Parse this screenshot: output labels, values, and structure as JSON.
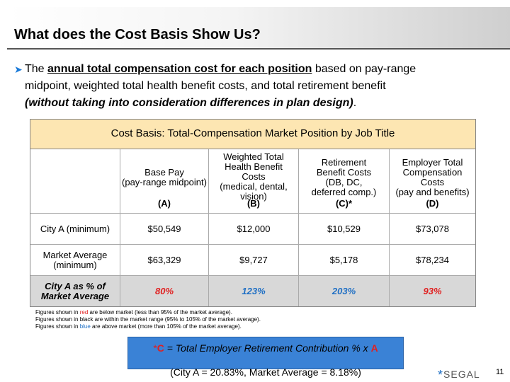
{
  "slide": {
    "title": "What does the Cost Basis Show Us?",
    "bullet": {
      "prefix": "The ",
      "underlined": "annual total compensation cost for each position",
      "rest1": " based on pay-range",
      "line2": "midpoint, weighted total health benefit costs, and total retirement benefit",
      "italic": "(without taking into consideration differences in plan design)",
      "end": "."
    },
    "page_number": "11",
    "logo_text": "SEGAL",
    "logo_mark": "*"
  },
  "table": {
    "caption": "Cost Basis: Total-Compensation Market Position by Job Title",
    "columns": [
      {
        "bold": "Base Pay",
        "sub": "(pay-range midpoint)",
        "letter": "(A)"
      },
      {
        "bold": "Weighted Total Health Benefit Costs",
        "sub": "(medical, dental, vision)",
        "letter": "(B)"
      },
      {
        "bold": "Retirement Benefit Costs",
        "sub": "(DB, DC, deferred comp.)",
        "letter": "(C)*"
      },
      {
        "bold": "Employer Total Compensation Costs",
        "sub": "(pay and benefits)",
        "letter": "(D)"
      }
    ],
    "rows": [
      {
        "label": "City A (minimum)",
        "values": [
          "$50,549",
          "$12,000",
          "$10,529",
          "$73,078"
        ]
      },
      {
        "label": "Market Average (minimum)",
        "values": [
          "$63,329",
          "$9,727",
          "$5,178",
          "$78,234"
        ]
      },
      {
        "label": "City A as % of Market Average",
        "values": [
          "80%",
          "123%",
          "203%",
          "93%"
        ],
        "colors": [
          "red",
          "blue",
          "blue",
          "red"
        ]
      }
    ]
  },
  "notes": {
    "line1_pre": "Figures shown in ",
    "line1_color": "red",
    "line1_post": " are below market (less than 95% of the market average).",
    "line2": "Figures shown in black are within the market range (95% to 105% of the market average).",
    "line3_pre": "Figures shown in ",
    "line3_color": "blue",
    "line3_post": " are above market (more than 105% of the market average)."
  },
  "formula": {
    "star": "*",
    "c": "C",
    "middle": " = Total Employer Retirement Contribution % ",
    "x": "x ",
    "a": "A",
    "line2": "(City A = 20.83%, Market Average = 8.18%)"
  },
  "colors": {
    "caption_bg": "#fde6b2",
    "gray_row": "#d8d8d8",
    "red": "#e02020",
    "blue": "#1f6fc4",
    "formula_bg": "#3a82d6"
  }
}
